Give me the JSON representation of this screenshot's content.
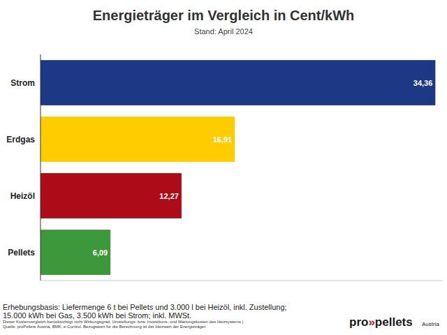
{
  "chart_data": {
    "type": "bar",
    "orientation": "horizontal",
    "title": "Energieträger im Vergleich in Cent/kWh",
    "subtitle": "Stand: April 2024",
    "categories": [
      "Strom",
      "Erdgas",
      "Heizöl",
      "Pellets"
    ],
    "values": [
      34.36,
      16.91,
      12.27,
      6.09
    ],
    "value_labels": [
      "34,36",
      "16,91",
      "12,27",
      "6,09"
    ],
    "colors": [
      "#1d3885",
      "#ffcc00",
      "#ad0b18",
      "#3c983a"
    ],
    "xlim": [
      0,
      35
    ],
    "xticks": [],
    "tick_labels": "y",
    "data_labels": true,
    "grid": false,
    "annotations": [
      "Erhebungsbasis: Liefermenge 6 t bei Pellets und 3.000 l bei Heizöl, inkl. Zustellung;",
      "15.000 kWh bei Gas, 3.500 kWh bei Strom; inkl. MWSt."
    ],
    "notes": [
      "Dieser Kostenvergleich berücksichtigt nicht Wirkungsgrad, Umstellungs- bzw. Investitons- und Wartungskosten des Heizsystems |",
      "Quelle: proPellets Austria, BMK, e-Control. Bezugswert für die Berechnung ist der Heizwert der Energieträger."
    ],
    "logo": {
      "parts": [
        "pro",
        "»",
        "pellets"
      ],
      "sub": "Austria"
    }
  }
}
